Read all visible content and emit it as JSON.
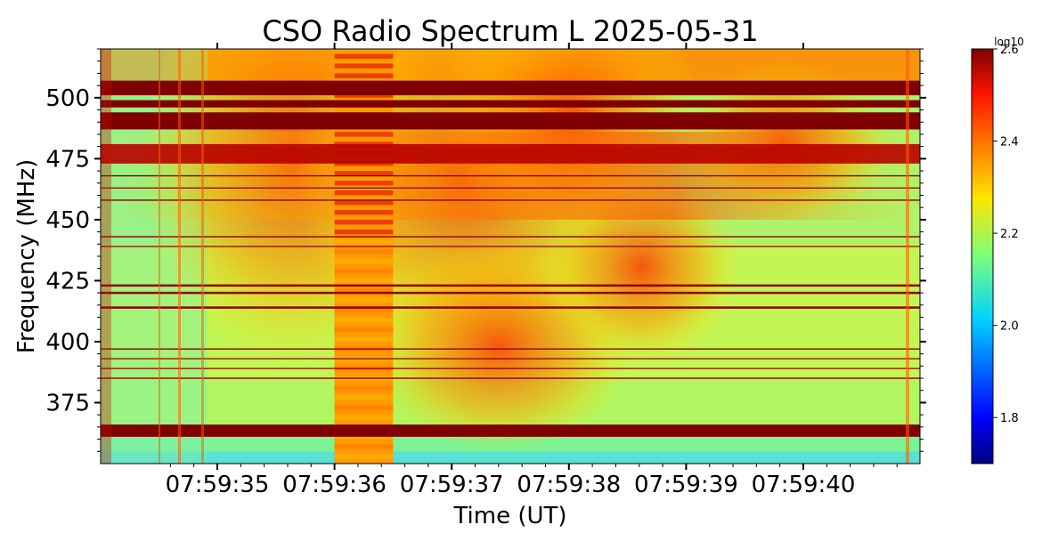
{
  "chart_data": {
    "type": "heatmap",
    "title": "CSO Radio Spectrum L 2025-05-31",
    "xlabel": "Time (UT)",
    "ylabel": "Frequency (MHz)",
    "x_ticks": [
      "07:59:35",
      "07:59:36",
      "07:59:37",
      "07:59:38",
      "07:59:39",
      "07:59:40"
    ],
    "y_ticks": [
      375,
      400,
      425,
      450,
      475,
      500
    ],
    "ylim": [
      350,
      520
    ],
    "colorbar": {
      "label": "log10",
      "colormap": "jet",
      "range": [
        1.7,
        2.6
      ],
      "ticks": [
        "1.8",
        "2.0",
        "2.2",
        "2.4",
        "2.6"
      ]
    },
    "features": {
      "saturated_bands_mhz": [
        [
          487,
          494
        ],
        [
          496,
          499
        ],
        [
          501,
          507
        ],
        [
          361,
          366
        ]
      ],
      "blanked_interval": [
        "07:59:36.0",
        "07:59:36.5"
      ],
      "background_level": 2.15,
      "drifting_burst_level": 2.45
    }
  }
}
